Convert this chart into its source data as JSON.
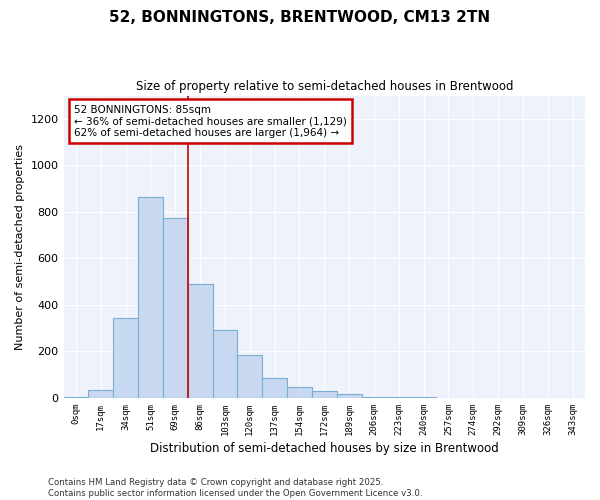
{
  "title1": "52, BONNINGTONS, BRENTWOOD, CM13 2TN",
  "title2": "Size of property relative to semi-detached houses in Brentwood",
  "xlabel": "Distribution of semi-detached houses by size in Brentwood",
  "ylabel": "Number of semi-detached properties",
  "categories": [
    "0sqm",
    "17sqm",
    "34sqm",
    "51sqm",
    "69sqm",
    "86sqm",
    "103sqm",
    "120sqm",
    "137sqm",
    "154sqm",
    "172sqm",
    "189sqm",
    "206sqm",
    "223sqm",
    "240sqm",
    "257sqm",
    "274sqm",
    "292sqm",
    "309sqm",
    "326sqm",
    "343sqm"
  ],
  "values": [
    5,
    35,
    345,
    865,
    775,
    490,
    290,
    185,
    85,
    48,
    30,
    15,
    5,
    2,
    2,
    1,
    1,
    0,
    0,
    0,
    0
  ],
  "bar_color": "#c8d8f0",
  "bar_edge_color": "#7aafd4",
  "annotation_box_color": "#ffffff",
  "annotation_box_edge_color": "#cc0000",
  "annotation_text": "52 BONNINGTONS: 85sqm\n← 36% of semi-detached houses are smaller (1,129)\n62% of semi-detached houses are larger (1,964) →",
  "vline_x": 5.0,
  "vline_color": "#cc0000",
  "ylim": [
    0,
    1300
  ],
  "yticks": [
    0,
    200,
    400,
    600,
    800,
    1000,
    1200
  ],
  "footer": "Contains HM Land Registry data © Crown copyright and database right 2025.\nContains public sector information licensed under the Open Government Licence v3.0.",
  "bg_color": "#ffffff",
  "plot_bg_color": "#eef2fb",
  "grid_color": "#ffffff"
}
